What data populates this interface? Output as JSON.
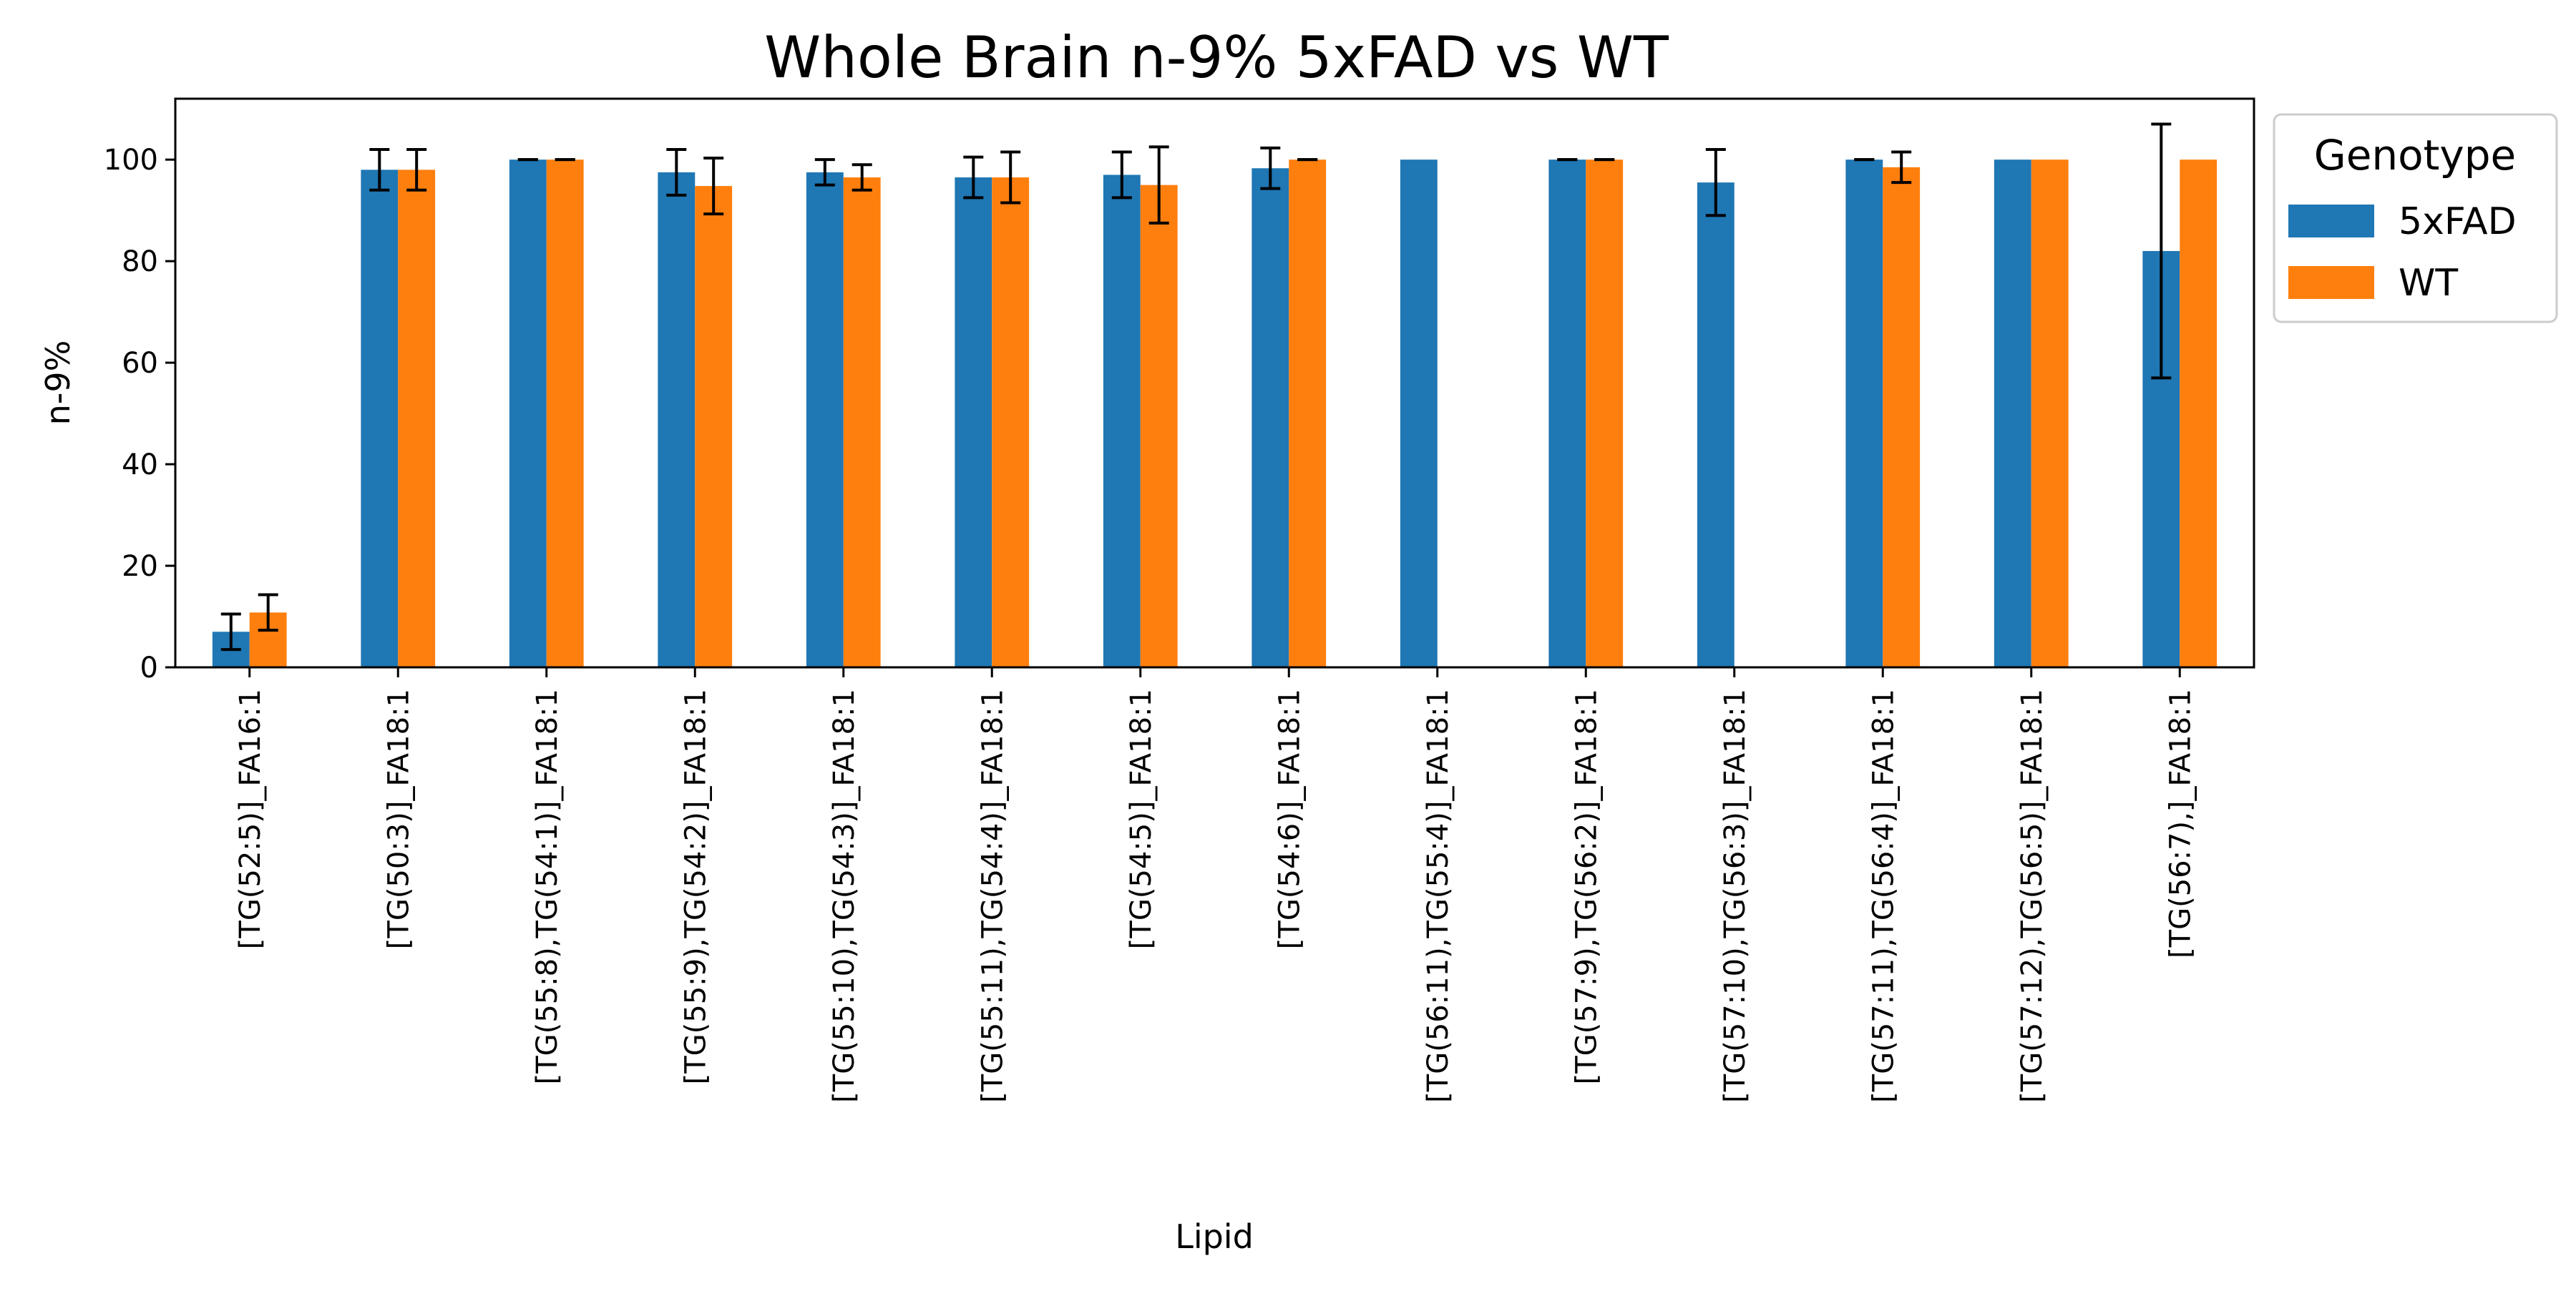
{
  "chart_data": {
    "type": "bar",
    "title": "Whole Brain n-9% 5xFAD vs WT",
    "xlabel": "Lipid",
    "ylabel": "n-9%",
    "ylim": [
      0,
      112
    ],
    "yticks": [
      0,
      20,
      40,
      60,
      80,
      100
    ],
    "grid": false,
    "legend": {
      "title": "Genotype",
      "placement": "outside-top-right"
    },
    "categories": [
      "[TG(52:5)]_FA16:1",
      "[TG(50:3)]_FA18:1",
      "[TG(55:8),TG(54:1)]_FA18:1",
      "[TG(55:9),TG(54:2)]_FA18:1",
      "[TG(55:10),TG(54:3)]_FA18:1",
      "[TG(55:11),TG(54:4)]_FA18:1",
      "[TG(54:5)]_FA18:1",
      "[TG(54:6)]_FA18:1",
      "[TG(56:11),TG(55:4)]_FA18:1",
      "[TG(57:9),TG(56:2)]_FA18:1",
      "[TG(57:10),TG(56:3)]_FA18:1",
      "[TG(57:11),TG(56:4)]_FA18:1",
      "[TG(57:12),TG(56:5)]_FA18:1",
      "[TG(56:7),]_FA18:1"
    ],
    "series": [
      {
        "name": "5xFAD",
        "color": "#1f77b4",
        "values": [
          7,
          98,
          100,
          97.5,
          97.5,
          96.5,
          97,
          98.3,
          100,
          100,
          95.5,
          100,
          100,
          82
        ],
        "errors": [
          3.5,
          4,
          0,
          4.5,
          2.5,
          4,
          4.5,
          4,
          null,
          0,
          6.5,
          0,
          null,
          25
        ]
      },
      {
        "name": "WT",
        "color": "#ff7f0e",
        "values": [
          10.8,
          98,
          100,
          94.8,
          96.5,
          96.5,
          95,
          100,
          null,
          100,
          null,
          98.5,
          100,
          100
        ],
        "errors": [
          3.5,
          4,
          0,
          5.5,
          2.5,
          5,
          7.5,
          0,
          null,
          0,
          null,
          3,
          null,
          null
        ]
      }
    ]
  }
}
